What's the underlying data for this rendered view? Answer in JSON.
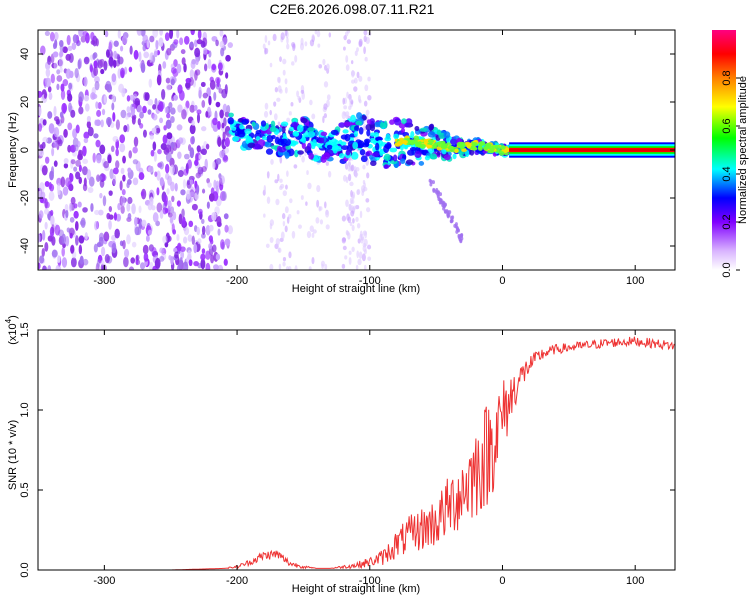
{
  "page_title": "C2E6.2026.098.07.11.R21",
  "chart_data": [
    {
      "type": "heatmap",
      "title": "C2E6.2026.098.07.11.R21",
      "xlabel": "Height of straight line (km)",
      "ylabel": "Frequency (Hz)",
      "xlim": [
        -350,
        130
      ],
      "ylim": [
        -50,
        50
      ],
      "x_ticks": [
        -300,
        -200,
        -100,
        0,
        100
      ],
      "x_tick_labels": [
        "-300",
        "-200",
        "-100",
        "0",
        "100"
      ],
      "y_ticks": [
        -40,
        -20,
        0,
        20,
        40
      ],
      "y_tick_labels": [
        "-40",
        "-20",
        "0",
        "20",
        "40"
      ],
      "colorbar": {
        "label": "Normalized spectral amplitude",
        "range": [
          0,
          1
        ],
        "ticks": [
          0.0,
          0.2,
          0.4,
          0.6,
          0.8
        ],
        "tick_labels": [
          "0.0",
          "0.2",
          "0.4",
          "0.6",
          "0.8"
        ],
        "colors": [
          "#ffffff",
          "#cc99ff",
          "#8000ff",
          "#0000ff",
          "#00ffff",
          "#00ff00",
          "#ffff00",
          "#ff8000",
          "#ff0000",
          "#ff0080"
        ]
      },
      "noise_region_x": [
        -350,
        -205
      ],
      "sparse_noise_regions_x": [
        [
          -180,
          -130
        ],
        [
          -120,
          -100
        ]
      ],
      "ridge": {
        "x": [
          -205,
          -190,
          -175,
          -160,
          -150,
          -140,
          -130,
          -120,
          -110,
          -100,
          -90,
          -80,
          -70,
          -60,
          -50,
          -40,
          -30,
          -20,
          -10,
          0,
          10,
          130
        ],
        "y": [
          9,
          6,
          5,
          4,
          7,
          2,
          1,
          3,
          6,
          4,
          2,
          3,
          4,
          3,
          2,
          1,
          1,
          2,
          1,
          0,
          0,
          0
        ],
        "spread": [
          6,
          6,
          6,
          7,
          8,
          6,
          5,
          8,
          9,
          9,
          9,
          10,
          10,
          9,
          7,
          5,
          3,
          3,
          2,
          2,
          1,
          1
        ]
      },
      "tail": {
        "x": [
          -55,
          -45,
          -35,
          -30
        ],
        "y": [
          -12,
          -22,
          -32,
          -38
        ]
      }
    },
    {
      "type": "line",
      "xlabel": "Height of straight line (km)",
      "ylabel": "SNR (10 * v/v)",
      "scale_label": "(x10",
      "scale_exponent": "4",
      "y_multiplier": 10000,
      "xlim": [
        -350,
        130
      ],
      "ylim": [
        0,
        1.5
      ],
      "x_ticks": [
        -300,
        -200,
        -100,
        0,
        100
      ],
      "x_tick_labels": [
        "-300",
        "-200",
        "-100",
        "0",
        "100"
      ],
      "y_ticks": [
        0.0,
        0.5,
        1.0,
        1.5
      ],
      "y_tick_labels": [
        "0.0",
        "0.5",
        "1.0",
        "1.5"
      ],
      "color": "#ee3333",
      "series": [
        {
          "name": "SNR",
          "x": [
            -350,
            -300,
            -250,
            -210,
            -200,
            -190,
            -180,
            -170,
            -160,
            -150,
            -140,
            -130,
            -120,
            -110,
            -100,
            -90,
            -80,
            -70,
            -60,
            -50,
            -40,
            -30,
            -20,
            -10,
            0,
            10,
            20,
            30,
            40,
            50,
            60,
            80,
            100,
            120,
            130
          ],
          "y": [
            0.0,
            0.0,
            0.0,
            0.01,
            0.02,
            0.05,
            0.09,
            0.1,
            0.04,
            0.02,
            0.01,
            0.01,
            0.02,
            0.03,
            0.05,
            0.08,
            0.16,
            0.22,
            0.26,
            0.3,
            0.4,
            0.5,
            0.62,
            0.75,
            0.95,
            1.15,
            1.28,
            1.35,
            1.38,
            1.39,
            1.4,
            1.42,
            1.43,
            1.41,
            1.4
          ],
          "noise": [
            0.0,
            0.0,
            0.0,
            0.0,
            0.01,
            0.02,
            0.03,
            0.03,
            0.02,
            0.01,
            0.0,
            0.0,
            0.01,
            0.02,
            0.03,
            0.05,
            0.09,
            0.12,
            0.14,
            0.16,
            0.2,
            0.25,
            0.3,
            0.35,
            0.25,
            0.12,
            0.06,
            0.04,
            0.03,
            0.03,
            0.03,
            0.03,
            0.03,
            0.03,
            0.03
          ]
        }
      ]
    }
  ]
}
